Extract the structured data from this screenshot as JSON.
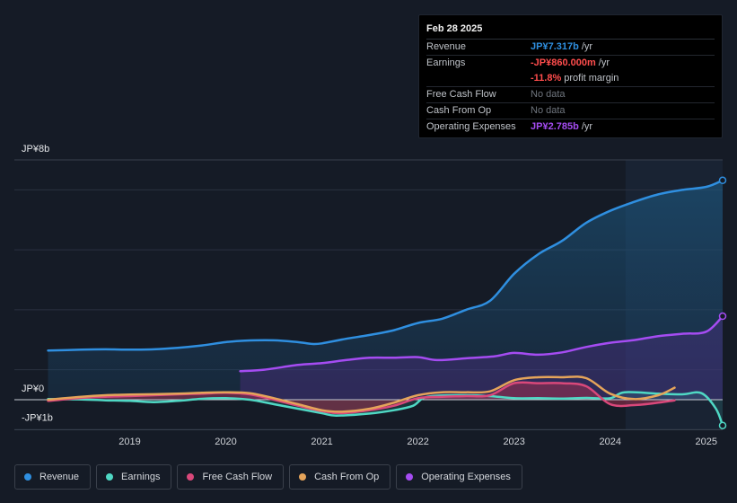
{
  "tooltip": {
    "date": "Feb 28 2025",
    "rows": {
      "revenue": {
        "label": "Revenue",
        "value": "JP¥7.317b",
        "unit": "/yr"
      },
      "earnings": {
        "label": "Earnings",
        "value": "-JP¥860.000m",
        "unit": "/yr"
      },
      "margin": {
        "value": "-11.8%",
        "unit": "profit margin"
      },
      "fcf": {
        "label": "Free Cash Flow",
        "value": "No data"
      },
      "cfo": {
        "label": "Cash From Op",
        "value": "No data"
      },
      "opex": {
        "label": "Operating Expenses",
        "value": "JP¥2.785b",
        "unit": "/yr"
      }
    }
  },
  "legend": {
    "revenue": "Revenue",
    "earnings": "Earnings",
    "fcf": "Free Cash Flow",
    "cfo": "Cash From Op",
    "opex": "Operating Expenses"
  },
  "colors": {
    "revenue": "#2f8fe0",
    "earnings": "#4fd8c4",
    "fcf": "#d9487a",
    "cfo": "#e5a45a",
    "opex": "#a54cf2"
  },
  "chart_data": {
    "type": "line",
    "y_unit": "JP¥ billions",
    "ylim": [
      -1,
      8
    ],
    "y_tick_labels": [
      {
        "value": 8,
        "label": "JP¥8b"
      },
      {
        "value": 0,
        "label": "JP¥0"
      },
      {
        "value": -1,
        "label": "-JP¥1b"
      }
    ],
    "x_tick_labels": [
      {
        "value": 2019,
        "label": "2019"
      },
      {
        "value": 2020,
        "label": "2020"
      },
      {
        "value": 2021,
        "label": "2021"
      },
      {
        "value": 2022,
        "label": "2022"
      },
      {
        "value": 2023,
        "label": "2023"
      },
      {
        "value": 2024,
        "label": "2024"
      },
      {
        "value": 2025,
        "label": "2025"
      }
    ],
    "xlim": [
      2017.8,
      2025.17
    ],
    "highlight_start": 2024.16,
    "series": [
      {
        "name": "Revenue",
        "color_key": "revenue",
        "fill": true,
        "points": [
          [
            2018.15,
            1.64
          ],
          [
            2018.5,
            1.67
          ],
          [
            2018.75,
            1.68
          ],
          [
            2019.0,
            1.67
          ],
          [
            2019.25,
            1.68
          ],
          [
            2019.5,
            1.73
          ],
          [
            2019.75,
            1.81
          ],
          [
            2020.0,
            1.92
          ],
          [
            2020.2,
            1.97
          ],
          [
            2020.5,
            1.98
          ],
          [
            2020.75,
            1.92
          ],
          [
            2020.9,
            1.86
          ],
          [
            2021.0,
            1.88
          ],
          [
            2021.25,
            2.03
          ],
          [
            2021.5,
            2.16
          ],
          [
            2021.75,
            2.32
          ],
          [
            2022.0,
            2.56
          ],
          [
            2022.25,
            2.7
          ],
          [
            2022.5,
            3.0
          ],
          [
            2022.75,
            3.3
          ],
          [
            2023.0,
            4.2
          ],
          [
            2023.25,
            4.85
          ],
          [
            2023.5,
            5.3
          ],
          [
            2023.75,
            5.9
          ],
          [
            2024.0,
            6.3
          ],
          [
            2024.25,
            6.6
          ],
          [
            2024.5,
            6.85
          ],
          [
            2024.75,
            7.0
          ],
          [
            2025.0,
            7.1
          ],
          [
            2025.17,
            7.317
          ]
        ]
      },
      {
        "name": "Operating Expenses",
        "color_key": "opex",
        "fill": true,
        "points": [
          [
            2020.15,
            0.95
          ],
          [
            2020.4,
            1.0
          ],
          [
            2020.75,
            1.16
          ],
          [
            2021.0,
            1.22
          ],
          [
            2021.25,
            1.32
          ],
          [
            2021.5,
            1.4
          ],
          [
            2021.75,
            1.4
          ],
          [
            2022.0,
            1.42
          ],
          [
            2022.2,
            1.32
          ],
          [
            2022.5,
            1.38
          ],
          [
            2022.8,
            1.45
          ],
          [
            2023.0,
            1.56
          ],
          [
            2023.25,
            1.5
          ],
          [
            2023.5,
            1.58
          ],
          [
            2023.75,
            1.76
          ],
          [
            2024.0,
            1.9
          ],
          [
            2024.25,
            1.99
          ],
          [
            2024.5,
            2.12
          ],
          [
            2024.75,
            2.2
          ],
          [
            2025.0,
            2.27
          ],
          [
            2025.17,
            2.785
          ]
        ]
      },
      {
        "name": "Earnings",
        "color_key": "earnings",
        "fill": true,
        "points": [
          [
            2018.15,
            0.02
          ],
          [
            2018.5,
            0.01
          ],
          [
            2018.75,
            -0.02
          ],
          [
            2019.0,
            -0.04
          ],
          [
            2019.25,
            -0.08
          ],
          [
            2019.5,
            -0.04
          ],
          [
            2019.75,
            0.03
          ],
          [
            2020.0,
            0.05
          ],
          [
            2020.25,
            0.0
          ],
          [
            2020.5,
            -0.15
          ],
          [
            2020.75,
            -0.3
          ],
          [
            2021.0,
            -0.45
          ],
          [
            2021.15,
            -0.53
          ],
          [
            2021.5,
            -0.46
          ],
          [
            2021.75,
            -0.35
          ],
          [
            2021.95,
            -0.2
          ],
          [
            2022.1,
            0.1
          ],
          [
            2022.5,
            0.15
          ],
          [
            2022.75,
            0.12
          ],
          [
            2023.0,
            0.05
          ],
          [
            2023.25,
            0.05
          ],
          [
            2023.5,
            0.04
          ],
          [
            2023.75,
            0.06
          ],
          [
            2024.0,
            0.05
          ],
          [
            2024.15,
            0.25
          ],
          [
            2024.5,
            0.2
          ],
          [
            2024.75,
            0.18
          ],
          [
            2024.95,
            0.22
          ],
          [
            2025.1,
            -0.3
          ],
          [
            2025.17,
            -0.86
          ]
        ]
      },
      {
        "name": "Free Cash Flow",
        "color_key": "fcf",
        "fill": true,
        "points": [
          [
            2018.15,
            -0.04
          ],
          [
            2018.5,
            0.06
          ],
          [
            2018.75,
            0.1
          ],
          [
            2019.0,
            0.12
          ],
          [
            2019.5,
            0.18
          ],
          [
            2019.75,
            0.2
          ],
          [
            2020.0,
            0.23
          ],
          [
            2020.25,
            0.18
          ],
          [
            2020.5,
            0.0
          ],
          [
            2020.75,
            -0.2
          ],
          [
            2021.0,
            -0.38
          ],
          [
            2021.2,
            -0.45
          ],
          [
            2021.5,
            -0.35
          ],
          [
            2021.75,
            -0.2
          ],
          [
            2022.0,
            0.05
          ],
          [
            2022.25,
            0.1
          ],
          [
            2022.5,
            0.12
          ],
          [
            2022.75,
            0.15
          ],
          [
            2023.0,
            0.55
          ],
          [
            2023.25,
            0.55
          ],
          [
            2023.5,
            0.55
          ],
          [
            2023.75,
            0.45
          ],
          [
            2024.0,
            -0.15
          ],
          [
            2024.25,
            -0.18
          ],
          [
            2024.5,
            -0.1
          ],
          [
            2024.67,
            -0.02
          ]
        ]
      },
      {
        "name": "Cash From Op",
        "color_key": "cfo",
        "fill": false,
        "points": [
          [
            2018.15,
            0.0
          ],
          [
            2018.5,
            0.1
          ],
          [
            2018.75,
            0.15
          ],
          [
            2019.0,
            0.17
          ],
          [
            2019.5,
            0.2
          ],
          [
            2019.75,
            0.23
          ],
          [
            2020.0,
            0.25
          ],
          [
            2020.25,
            0.22
          ],
          [
            2020.5,
            0.05
          ],
          [
            2020.75,
            -0.15
          ],
          [
            2021.0,
            -0.35
          ],
          [
            2021.2,
            -0.4
          ],
          [
            2021.5,
            -0.3
          ],
          [
            2021.75,
            -0.1
          ],
          [
            2022.0,
            0.15
          ],
          [
            2022.25,
            0.25
          ],
          [
            2022.5,
            0.25
          ],
          [
            2022.75,
            0.28
          ],
          [
            2023.0,
            0.65
          ],
          [
            2023.25,
            0.75
          ],
          [
            2023.5,
            0.75
          ],
          [
            2023.75,
            0.72
          ],
          [
            2024.0,
            0.2
          ],
          [
            2024.25,
            0.02
          ],
          [
            2024.5,
            0.15
          ],
          [
            2024.67,
            0.4
          ]
        ]
      }
    ]
  }
}
